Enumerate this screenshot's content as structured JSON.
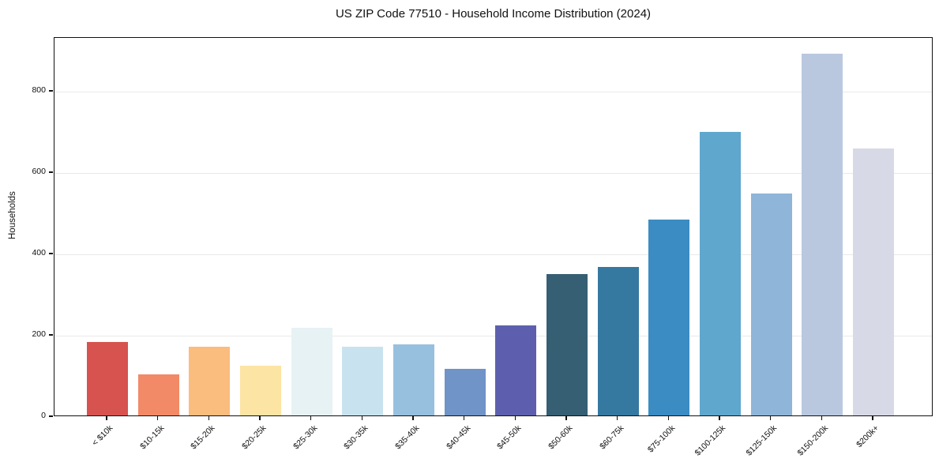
{
  "title": "US ZIP Code 77510 - Household Income Distribution (2024)",
  "chart_data": {
    "type": "bar",
    "title": "US ZIP Code 77510 - Household Income Distribution (2024)",
    "xlabel": "",
    "ylabel": "Households",
    "categories": [
      "< $10k",
      "$10-15k",
      "$15-20k",
      "$20-25k",
      "$25-30k",
      "$30-35k",
      "$35-40k",
      "$40-45k",
      "$45-50k",
      "$50-60k",
      "$60-75k",
      "$75-100k",
      "$100-125k",
      "$125-150k",
      "$150-200k",
      "$200k+"
    ],
    "values": [
      181,
      101,
      169,
      122,
      216,
      169,
      175,
      114,
      221,
      347,
      365,
      481,
      697,
      545,
      890,
      656
    ],
    "bar_colors": [
      "#d6534f",
      "#f28a67",
      "#fabd7d",
      "#fce4a4",
      "#e7f2f5",
      "#c8e3ef",
      "#97c0de",
      "#7093c8",
      "#5d5fae",
      "#365f73",
      "#3579a1",
      "#3a8cc3",
      "#5fa7cd",
      "#8fb5d8",
      "#b9c8df",
      "#d7d9e6"
    ],
    "yticks": [
      0,
      200,
      400,
      600,
      800
    ],
    "ylim": [
      0,
      932
    ],
    "grid": "horizontal-only",
    "gridline_color": "#e9e9e9",
    "spine_color": "#111111",
    "background_color": "#ffffff",
    "x_tick_rotation_deg": 45
  }
}
